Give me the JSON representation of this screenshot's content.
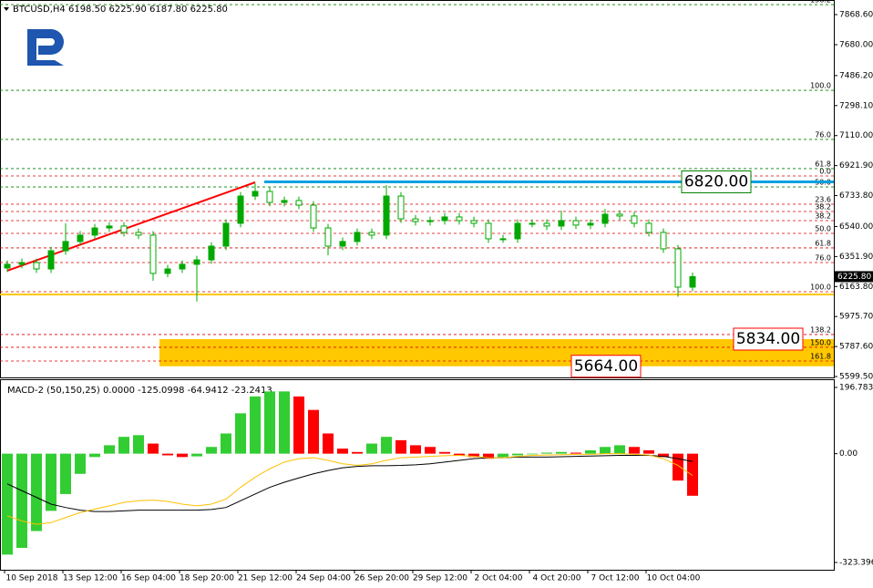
{
  "chart_data": {
    "type": "candlestick",
    "title": "BTCUSD,H4  6198.50 6225.90 6187.80 6225.80",
    "x_labels": [
      "10 Sep 2018",
      "13 Sep 12:00",
      "16 Sep 04:00",
      "18 Sep 20:00",
      "21 Sep 12:00",
      "24 Sep 04:00",
      "26 Sep 20:00",
      "29 Sep 12:00",
      "2 Oct 04:00",
      "4 Oct 20:00",
      "7 Oct 12:00",
      "10 Oct 04:00"
    ],
    "open": [
      6280,
      6303,
      6314,
      6274,
      6388,
      6446,
      6486,
      6531,
      6543,
      6503,
      6486,
      6246,
      6274,
      6303,
      6331,
      6417,
      6560,
      6731,
      6760,
      6691,
      6703,
      6674,
      6531,
      6417,
      6446,
      6503,
      6486,
      6731,
      6588,
      6571,
      6577,
      6600,
      6577,
      6560,
      6463,
      6463,
      6560,
      6560,
      6543,
      6577,
      6549,
      6560,
      6617,
      6606,
      6560,
      6503,
      6400,
      6160
    ],
    "high": [
      6328,
      6339,
      6339,
      6413,
      6560,
      6511,
      6556,
      6568,
      6568,
      6528,
      6511,
      6299,
      6328,
      6356,
      6442,
      6585,
      6756,
      6810,
      6785,
      6728,
      6728,
      6699,
      6556,
      6471,
      6528,
      6528,
      6800,
      6756,
      6613,
      6602,
      6625,
      6625,
      6602,
      6585,
      6488,
      6585,
      6585,
      6585,
      6640,
      6602,
      6585,
      6650,
      6642,
      6631,
      6585,
      6528,
      6425,
      6251
    ],
    "low": [
      6255,
      6278,
      6249,
      6249,
      6363,
      6421,
      6461,
      6506,
      6478,
      6461,
      6200,
      6221,
      6249,
      6070,
      6306,
      6392,
      6535,
      6706,
      6666,
      6666,
      6649,
      6506,
      6360,
      6392,
      6421,
      6461,
      6461,
      6563,
      6546,
      6546,
      6552,
      6552,
      6535,
      6438,
      6438,
      6438,
      6535,
      6518,
      6518,
      6524,
      6524,
      6535,
      6581,
      6535,
      6478,
      6375,
      6100,
      6135
    ],
    "close": [
      6303,
      6314,
      6274,
      6388,
      6446,
      6486,
      6531,
      6543,
      6503,
      6486,
      6246,
      6274,
      6303,
      6331,
      6417,
      6560,
      6731,
      6760,
      6691,
      6703,
      6674,
      6531,
      6417,
      6446,
      6503,
      6486,
      6731,
      6588,
      6571,
      6577,
      6600,
      6577,
      6560,
      6463,
      6463,
      6560,
      6560,
      6543,
      6577,
      6549,
      6560,
      6617,
      6606,
      6560,
      6503,
      6400,
      6160,
      6226
    ],
    "candle_color": "#00a800",
    "ylim": [
      5594,
      7960
    ],
    "yticks": [
      {
        "value": 7868.6,
        "label": "7868.60"
      },
      {
        "value": 7680,
        "label": "7680.00"
      },
      {
        "value": 7486.2,
        "label": "7486.20"
      },
      {
        "value": 7298.1,
        "label": "7298.10"
      },
      {
        "value": 7110,
        "label": "7110.00"
      },
      {
        "value": 6921.9,
        "label": "6921.90"
      },
      {
        "value": 6733.8,
        "label": "6733.80"
      },
      {
        "value": 6540,
        "label": "6540.00"
      },
      {
        "value": 6351.9,
        "label": "6351.90"
      },
      {
        "value": 6163.8,
        "label": "6163.80"
      },
      {
        "value": 5975.7,
        "label": "5975.70"
      },
      {
        "value": 5787.6,
        "label": "5787.60"
      },
      {
        "value": 5599.5,
        "label": "5599.50"
      }
    ],
    "last_price": {
      "value": 6225.8,
      "label": "6225.80"
    },
    "levels": [
      {
        "label": "138.2",
        "value": 7931,
        "color": "#008000"
      },
      {
        "label": "100.0",
        "value": 7394,
        "color": "#008000"
      },
      {
        "label": "76.0",
        "value": 7086,
        "color": "#008000"
      },
      {
        "label": "61.8",
        "value": 6903,
        "color": "#008000"
      },
      {
        "label": "50.0",
        "value": 6788,
        "color": "#008000"
      },
      {
        "label": "0.0",
        "value": 6857,
        "color": "#e00000"
      },
      {
        "label": "23.6",
        "value": 6680,
        "color": "#e00000"
      },
      {
        "label": "38.2",
        "value": 6634,
        "color": "#e00000"
      },
      {
        "label": "38.2",
        "value": 6577,
        "color": "#e00000"
      },
      {
        "label": "50.0",
        "value": 6497,
        "color": "#e00000"
      },
      {
        "label": "61.8",
        "value": 6406,
        "color": "#e00000"
      },
      {
        "label": "76.0",
        "value": 6314,
        "color": "#e00000"
      },
      {
        "label": "100.0",
        "value": 6131,
        "color": "#e00000"
      },
      {
        "label": "138.2",
        "value": 5863,
        "color": "#e00000"
      },
      {
        "label": "150.0",
        "value": 5783,
        "color": "#e00000"
      },
      {
        "label": "161.8",
        "value": 5697,
        "color": "#e00000"
      }
    ],
    "trendline": {
      "from": [
        0,
        6263
      ],
      "to": [
        17,
        6817
      ],
      "color": "#ff0000"
    },
    "support_line": {
      "value": 6114,
      "color": "#ffc800"
    },
    "annotations": [
      {
        "value": 6820,
        "label": "6820.00",
        "color": "#008000"
      },
      {
        "value": 5834,
        "label": "5834.00",
        "color": "#ff0000"
      },
      {
        "value": 5664,
        "label": "5664.00",
        "color": "#ff0000"
      }
    ],
    "resistance_color": "#00a0e0",
    "zone_color": "#ffc800",
    "macd": {
      "title": "MACD-2 (50,150,25) 0.0000 -125.0998 -64.9412 -23.2413",
      "ylim": [
        -345.1,
        221.2
      ],
      "yticks": [
        196.7833,
        {
          "value": 0,
          "label": "0.00"
        },
        -323.3961
      ],
      "histogram": [
        -300,
        -280,
        -230,
        -170,
        -120,
        -60,
        -10,
        25,
        50,
        55,
        30,
        -5,
        -10,
        -8,
        20,
        60,
        120,
        170,
        185,
        185,
        170,
        130,
        60,
        15,
        5,
        30,
        50,
        40,
        25,
        20,
        5,
        -5,
        -10,
        -15,
        -10,
        -5,
        -2,
        3,
        5,
        3,
        10,
        20,
        25,
        20,
        10,
        -10,
        -80,
        -125.0998
      ],
      "up_color": "#32cd32",
      "down_color": "#ff0000",
      "main": [
        -90,
        -110,
        -130,
        -150,
        -160,
        -168,
        -172,
        -172,
        -170,
        -168,
        -168,
        -168,
        -168,
        -168,
        -166,
        -160,
        -140,
        -120,
        -100,
        -85,
        -72,
        -60,
        -50,
        -42,
        -38,
        -36,
        -36,
        -35,
        -33,
        -30,
        -25,
        -20,
        -15,
        -12,
        -12,
        -10,
        -10,
        -10,
        -9,
        -8,
        -7,
        -6,
        -5,
        -5,
        -5,
        -8,
        -15,
        -23.2413
      ],
      "signal": [
        -185,
        -200,
        -210,
        -205,
        -190,
        -175,
        -165,
        -155,
        -145,
        -140,
        -138,
        -142,
        -150,
        -155,
        -150,
        -135,
        -100,
        -70,
        -45,
        -25,
        -15,
        -12,
        -20,
        -30,
        -35,
        -30,
        -20,
        -12,
        -10,
        -8,
        -6,
        -5,
        -8,
        -12,
        -12,
        -8,
        -5,
        -4,
        -3,
        -2,
        -2,
        0,
        0,
        -2,
        -4,
        -15,
        -35,
        -64.9412
      ],
      "main_color": "#000000",
      "signal_color": "#ffc000"
    }
  }
}
